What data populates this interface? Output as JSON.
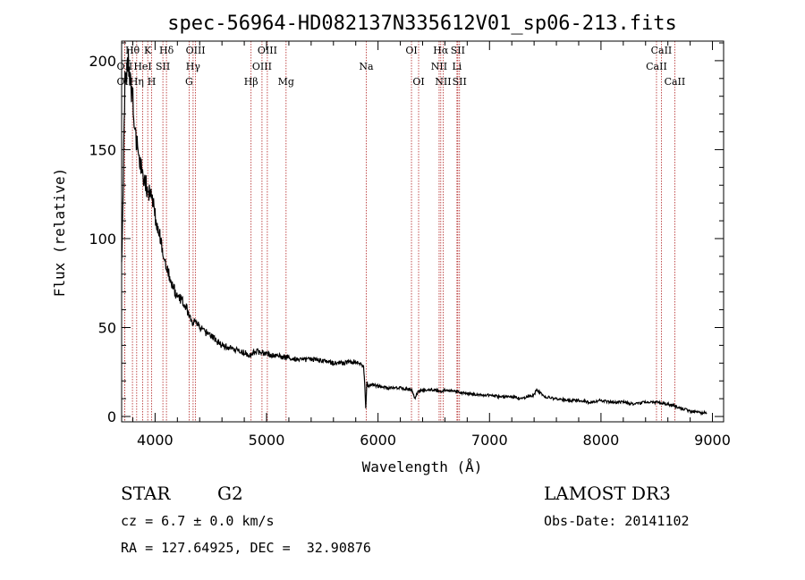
{
  "chart_data": {
    "type": "line",
    "title": "spec-56964-HD082137N335612V01_sp06-213.fits",
    "xlabel": "Wavelength (Å)",
    "ylabel": "Flux (relative)",
    "xlim": [
      3700,
      9100
    ],
    "ylim": [
      -3,
      211
    ],
    "x_ticks": [
      4000,
      5000,
      6000,
      7000,
      8000,
      9000
    ],
    "x_tick_labels": [
      "4000",
      "5000",
      "6000",
      "7000",
      "8000",
      "9000"
    ],
    "y_ticks": [
      0,
      50,
      100,
      150,
      200
    ],
    "y_tick_labels": [
      "0",
      "50",
      "100",
      "150",
      "200"
    ],
    "series": [
      {
        "name": "spectrum",
        "x": [
          3700,
          3730,
          3760,
          3780,
          3800,
          3820,
          3850,
          3880,
          3900,
          3930,
          3960,
          3990,
          4000,
          4050,
          4100,
          4150,
          4200,
          4250,
          4300,
          4340,
          4360,
          4400,
          4500,
          4600,
          4700,
          4800,
          4850,
          4900,
          5000,
          5100,
          5200,
          5300,
          5400,
          5500,
          5600,
          5700,
          5800,
          5870,
          5880,
          5890,
          5900,
          5910,
          5950,
          6000,
          6100,
          6200,
          6300,
          6330,
          6360,
          6400,
          6500,
          6560,
          6600,
          6700,
          6800,
          6900,
          7000,
          7100,
          7200,
          7300,
          7400,
          7420,
          7500,
          7600,
          7700,
          7800,
          7900,
          8000,
          8100,
          8200,
          8300,
          8400,
          8500,
          8600,
          8700,
          8800,
          8900,
          8950
        ],
        "y": [
          85,
          190,
          200,
          185,
          178,
          160,
          150,
          140,
          135,
          128,
          125,
          118,
          113,
          100,
          85,
          74,
          67,
          65,
          58,
          52,
          55,
          50,
          45,
          40,
          38,
          36,
          34,
          37,
          35,
          34,
          33,
          32,
          32,
          31,
          30,
          30,
          31,
          28,
          18,
          5,
          20,
          17,
          18,
          17,
          16,
          16,
          15,
          10,
          14,
          15,
          15,
          14,
          15,
          14,
          13,
          12,
          12,
          11,
          11,
          10,
          12,
          15,
          11,
          10,
          9,
          9,
          8,
          9,
          8,
          8,
          7,
          8,
          8,
          7,
          5,
          3,
          2,
          2
        ]
      }
    ],
    "emission_lines": [
      {
        "label": "Hθ",
        "x": 3797,
        "row": 0
      },
      {
        "label": "OII",
        "x": 3727,
        "row": 1
      },
      {
        "label": "OII",
        "x": 3727,
        "row": 2
      },
      {
        "label": "Hη",
        "x": 3835,
        "row": 2
      },
      {
        "label": "K",
        "x": 3934,
        "row": 0
      },
      {
        "label": "HeI",
        "x": 3889,
        "row": 1
      },
      {
        "label": "SII",
        "x": 4070,
        "row": 1
      },
      {
        "label": "H",
        "x": 3969,
        "row": 2
      },
      {
        "label": "Hδ",
        "x": 4102,
        "row": 0
      },
      {
        "label": "OIII",
        "x": 4363,
        "row": 0
      },
      {
        "label": "Hγ",
        "x": 4341,
        "row": 1
      },
      {
        "label": "G",
        "x": 4305,
        "row": 2
      },
      {
        "label": "OIII",
        "x": 5007,
        "row": 0
      },
      {
        "label": "OIII",
        "x": 4959,
        "row": 1
      },
      {
        "label": "Hβ",
        "x": 4861,
        "row": 2
      },
      {
        "label": "Mg",
        "x": 5175,
        "row": 2
      },
      {
        "label": "Na",
        "x": 5894,
        "row": 1
      },
      {
        "label": "OI",
        "x": 6300,
        "row": 0
      },
      {
        "label": "OI",
        "x": 6364,
        "row": 2
      },
      {
        "label": "Hα",
        "x": 6563,
        "row": 0
      },
      {
        "label": "SII",
        "x": 6716,
        "row": 0
      },
      {
        "label": "NII",
        "x": 6548,
        "row": 1
      },
      {
        "label": "Li",
        "x": 6708,
        "row": 1
      },
      {
        "label": "NII",
        "x": 6584,
        "row": 2
      },
      {
        "label": "SII",
        "x": 6731,
        "row": 2
      },
      {
        "label": "CaII",
        "x": 8542,
        "row": 0
      },
      {
        "label": "CaII",
        "x": 8498,
        "row": 1
      },
      {
        "label": "CaII",
        "x": 8662,
        "row": 2
      }
    ],
    "line_color": "#000000",
    "marker_color": "#b22222"
  },
  "info": {
    "object_class": "STAR",
    "subclass": "G2",
    "cz": "cz = 6.7 ± 0.0 km/s",
    "coords": "RA = 127.64925, DEC =  32.90876",
    "survey": "LAMOST DR3",
    "obs_date": "Obs-Date: 20141102"
  }
}
